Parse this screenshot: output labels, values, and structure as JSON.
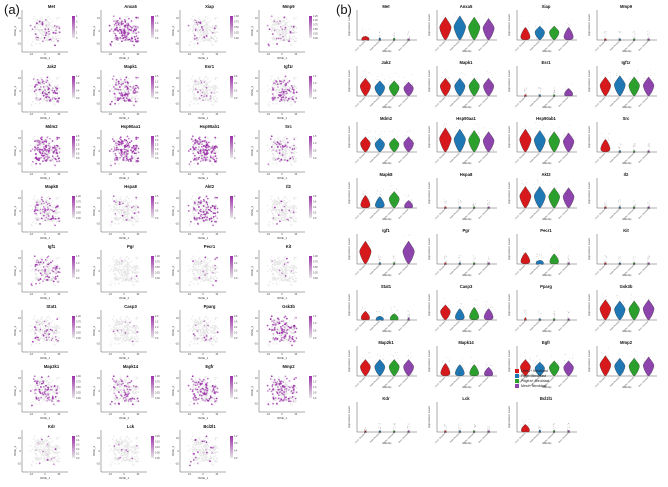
{
  "labels": {
    "a": "(a)",
    "b": "(b)"
  },
  "tsne": {
    "xlabel": "tSNE_1",
    "ylabel": "tSNE_2",
    "xticks": [
      "-10",
      "0",
      "10"
    ],
    "yticks": [
      "10",
      "0",
      "-10"
    ],
    "genes": [
      "Met",
      "Anxa5",
      "Xiap",
      "Mmp9",
      "Jak2",
      "Mapk1",
      "Esr1",
      "Igf1r",
      "Mdm2",
      "Hsp90aa1",
      "Hsp90ab1",
      "Src",
      "Mapk8",
      "Hspa8",
      "Akt2",
      "Il2",
      "Igf1",
      "Pgr",
      "Pecr1",
      "Kit",
      "Stat1",
      "Casp3",
      "Pparg",
      "Gsk3b",
      "Map2k1",
      "Mapk14",
      "Egfr",
      "Mmp2",
      "Kdr",
      "Lck",
      "Bcl2l1"
    ],
    "colorbar_ticks": [
      [
        "4",
        "3",
        "2",
        "1",
        "0"
      ],
      [
        "1.5",
        "1.0",
        "0.5",
        "0.0"
      ],
      [
        "1.00",
        "0.75",
        "0.50",
        "0.25",
        "0.00"
      ],
      [
        "1.25",
        "1.00",
        "0.75",
        "0.50",
        "0.25",
        "0.00"
      ],
      [
        "1.2",
        "0.8",
        "0.4",
        "0.0"
      ],
      [
        "1.6",
        "1.2",
        "0.8",
        "0.4",
        "0.0"
      ],
      [
        "0.6",
        "0.4",
        "0.2",
        "0.0"
      ],
      [
        "1.5",
        "1.0",
        "0.5",
        "0.0"
      ],
      [
        "2.5",
        "2.0",
        "1.5",
        "1.0",
        "0.5",
        "0.0"
      ],
      [
        "2.5",
        "2.0",
        "1.5",
        "1.0",
        "0.5",
        "0.0"
      ],
      [
        "3",
        "2",
        "1",
        "0"
      ],
      [
        "1.5",
        "1.0",
        "0.5",
        "0.0"
      ],
      [
        "1.00",
        "0.75",
        "0.50",
        "0.25",
        "0.00"
      ],
      [
        "1.5",
        "1.0",
        "0.5",
        "0.0"
      ],
      [
        "2",
        "1",
        "0"
      ],
      [
        "0.8",
        "0.6",
        "0.4",
        "0.2",
        "0.0"
      ],
      [
        "1.5",
        "1.0",
        "0.5",
        "0.0"
      ],
      [
        "1.00",
        "0.75",
        "0.50",
        "0.25",
        "0.00"
      ],
      [
        "0.6",
        "0.4",
        "0.2",
        "0.0"
      ],
      [
        "1.00",
        "0.75",
        "0.50",
        "0.25",
        "0.00"
      ],
      [
        "1.00",
        "0.75",
        "0.50",
        "0.25",
        "0.00"
      ],
      [
        "2.0",
        "1.5",
        "1.0",
        "0.5",
        "0.0"
      ],
      [
        "0.8",
        "0.6",
        "0.4",
        "0.2",
        "0.0"
      ],
      [
        "1.5",
        "1.0",
        "0.5",
        "0.0"
      ],
      [
        "1.00",
        "0.75",
        "0.50",
        "0.25",
        "0.00"
      ],
      [
        "1.00",
        "0.75",
        "0.50",
        "0.25",
        "0.00"
      ],
      [
        "1.5",
        "1.0",
        "0.5",
        "0.0"
      ],
      [
        "2.0",
        "1.5",
        "1.0",
        "0.5",
        "0.0"
      ],
      [
        "0.5",
        "0.4",
        "0.3",
        "0.2",
        "0.1",
        "0.0"
      ],
      [
        "0.20",
        "0.15",
        "0.10",
        "0.05",
        "0.00"
      ],
      [
        "1.2",
        "0.8",
        "0.4",
        "0.0"
      ]
    ],
    "density": [
      0.15,
      0.55,
      0.1,
      0.12,
      0.3,
      0.4,
      0.08,
      0.35,
      0.5,
      0.6,
      0.6,
      0.2,
      0.25,
      0.05,
      0.45,
      0.05,
      0.3,
      0.03,
      0.06,
      0.02,
      0.15,
      0.05,
      0.05,
      0.45,
      0.35,
      0.3,
      0.4,
      0.45,
      0.04,
      0.02,
      0.08
    ],
    "colors": {
      "low": "#e6e6e6",
      "high": "#9b30a8"
    }
  },
  "violin": {
    "ylabel": "Expression Level",
    "xlabel": "Identity",
    "groups": [
      "Lrfm1+ fibroblast",
      "Pdgfrl fibroblast",
      "Pdgfra+ fibroblast",
      "Mest+ fibroblast"
    ],
    "colors": [
      "#d7191c",
      "#1f77b4",
      "#2ca02c",
      "#8e44ad"
    ],
    "genes": [
      "Met",
      "Anxa5",
      "Xiap",
      "Mmp9",
      "Jak2",
      "Mapk1",
      "Esr1",
      "Igf1r",
      "Mdm2",
      "Hsp90aa1",
      "Hsp90ab1",
      "Src",
      "Mapk8",
      "Hspa8",
      "Akt2",
      "Il2",
      "Igf1",
      "Pgr",
      "Pecr1",
      "Kit",
      "Stat1",
      "Casp3",
      "Pparg",
      "Gsk3b",
      "Map2k1",
      "Mapk14",
      "Egfr",
      "Mmp2",
      "Kdr",
      "Lck",
      "Bcl2l1"
    ],
    "shapes": [
      [
        0.15,
        0.08,
        0.08,
        0.04
      ],
      [
        0.9,
        0.95,
        0.9,
        0.85
      ],
      [
        0.5,
        0.55,
        0.55,
        0.5
      ],
      [
        0.05,
        0.02,
        0.02,
        0.02
      ],
      [
        0.7,
        0.6,
        0.6,
        0.55
      ],
      [
        0.7,
        0.7,
        0.7,
        0.7
      ],
      [
        0.05,
        0.05,
        0.05,
        0.3
      ],
      [
        0.75,
        0.8,
        0.75,
        0.75
      ],
      [
        0.6,
        0.55,
        0.55,
        0.6
      ],
      [
        0.95,
        0.9,
        0.85,
        0.8
      ],
      [
        0.9,
        0.85,
        0.8,
        0.75
      ],
      [
        0.5,
        0.05,
        0.05,
        0.05
      ],
      [
        0.5,
        0.45,
        0.65,
        0.3
      ],
      [
        0.03,
        0.02,
        0.03,
        0.02
      ],
      [
        0.85,
        0.85,
        0.8,
        0.8
      ],
      [
        0.02,
        0.02,
        0.02,
        0.02
      ],
      [
        0.9,
        0.05,
        0.05,
        0.9
      ],
      [
        0.03,
        0.02,
        0.02,
        0.02
      ],
      [
        0.45,
        0.15,
        0.4,
        0.05
      ],
      [
        0.01,
        0.01,
        0.01,
        0.01
      ],
      [
        0.35,
        0.15,
        0.25,
        0.1
      ],
      [
        0.6,
        0.45,
        0.5,
        0.45
      ],
      [
        0.1,
        0.05,
        0.05,
        0.05
      ],
      [
        0.8,
        0.75,
        0.75,
        0.8
      ],
      [
        0.65,
        0.65,
        0.65,
        0.65
      ],
      [
        0.5,
        0.45,
        0.45,
        0.35
      ],
      [
        0.65,
        0.55,
        0.6,
        0.6
      ],
      [
        0.8,
        0.7,
        0.7,
        0.75
      ],
      [
        0.02,
        0.02,
        0.02,
        0.02
      ],
      [
        0.02,
        0.02,
        0.02,
        0.02
      ],
      [
        0.3,
        0.08,
        0.06,
        0.06
      ]
    ],
    "legend": [
      "Lrfm1+ fibroblast",
      "Pdgfrl fibroblast",
      "Pdgfra+ fibroblast",
      "Mest+ fibroblast"
    ]
  }
}
